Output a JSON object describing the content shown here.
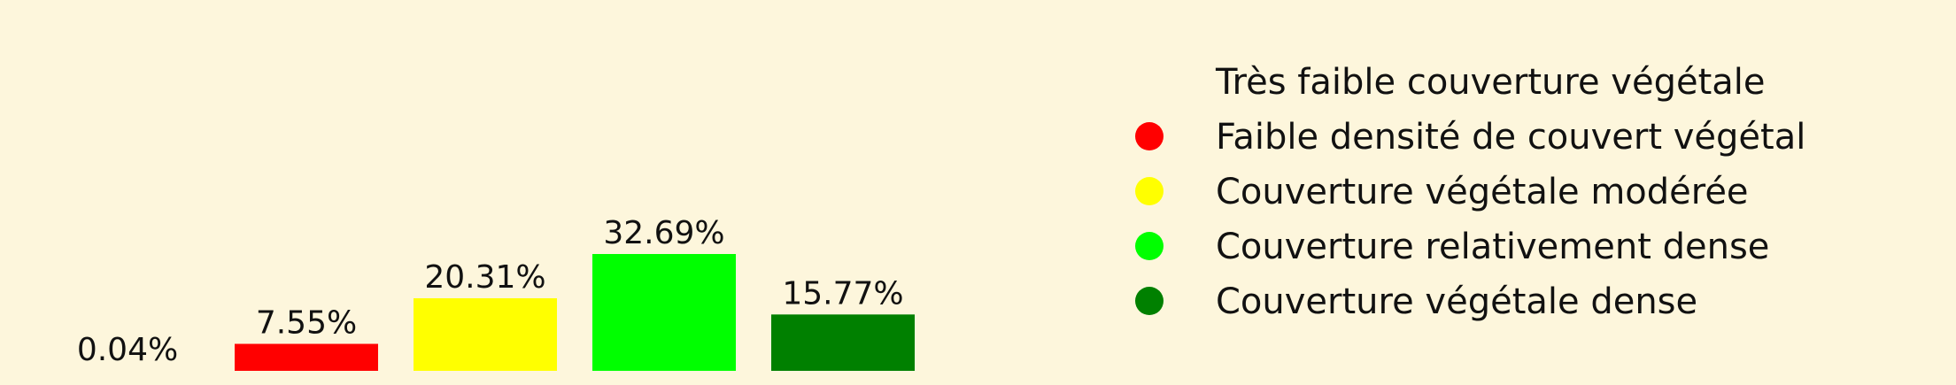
{
  "chart_data": {
    "type": "bar",
    "categories": [
      "Très faible couverture végétale",
      "Faible densité de couvert végétal",
      "Couverture végétale modérée",
      "Couverture relativement dense",
      "Couverture végétale dense"
    ],
    "values": [
      0.04,
      7.55,
      20.31,
      32.69,
      15.77
    ],
    "value_labels": [
      "0.04%",
      "7.55%",
      "20.31%",
      "32.69%",
      "15.77%"
    ],
    "colors": [
      "#fdf6dc",
      "#ff0000",
      "#ffff00",
      "#00ff00",
      "#008000"
    ],
    "ylim": [
      0,
      35
    ],
    "grid": false,
    "legend": {
      "placement": "right",
      "entries": [
        {
          "label": "Très faible couverture végétale",
          "color": "#fdf6dc"
        },
        {
          "label": "Faible densité de couvert végétal",
          "color": "#ff0000"
        },
        {
          "label": "Couverture végétale modérée",
          "color": "#ffff00"
        },
        {
          "label": "Couverture relativement dense",
          "color": "#00ff00"
        },
        {
          "label": "Couverture végétale dense",
          "color": "#008000"
        }
      ]
    }
  }
}
